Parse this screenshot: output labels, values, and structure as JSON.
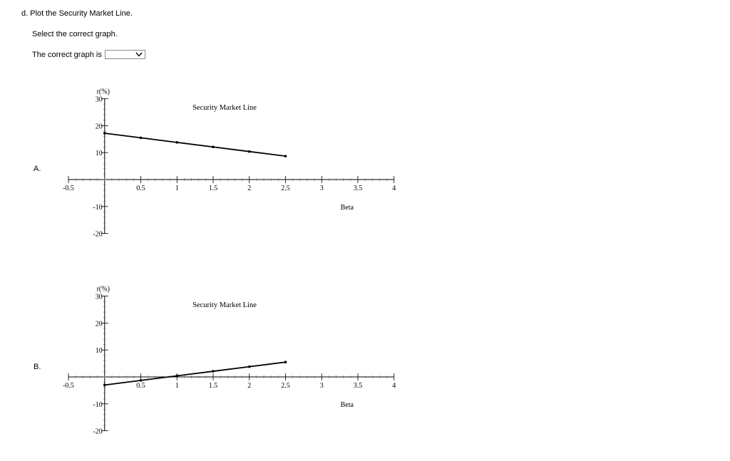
{
  "question": {
    "title": "d. Plot the Security Market Line.",
    "instruction": "Select the correct graph.",
    "answer_prompt": "The correct graph is",
    "dropdown_value": ""
  },
  "options": [
    {
      "label": "A."
    },
    {
      "label": "B."
    }
  ],
  "chart_data": [
    {
      "type": "line",
      "title": "Security Market Line",
      "xlabel": "Beta",
      "ylabel": "r(%)",
      "xlim": [
        -0.5,
        4
      ],
      "ylim": [
        -20,
        30
      ],
      "xticks": [
        -0.5,
        0.5,
        1,
        1.5,
        2,
        2.5,
        3,
        3.5,
        4
      ],
      "xtick_labels": [
        "-0.5",
        "0.5",
        "1",
        "1.5",
        "2",
        "2.5",
        "3",
        "3.5",
        "4"
      ],
      "yticks": [
        -20,
        -10,
        10,
        20,
        30
      ],
      "ytick_labels": [
        "-20",
        "-10",
        "10",
        "20",
        "30"
      ],
      "x": [
        0,
        0.5,
        1,
        1.5,
        2,
        2.5
      ],
      "values": [
        17.2,
        15.5,
        13.8,
        12.1,
        10.4,
        8.7
      ],
      "color": "#000000"
    },
    {
      "type": "line",
      "title": "Security Market Line",
      "xlabel": "Beta",
      "ylabel": "r(%)",
      "xlim": [
        -0.5,
        4
      ],
      "ylim": [
        -20,
        30
      ],
      "xticks": [
        -0.5,
        0.5,
        1,
        1.5,
        2,
        2.5,
        3,
        3.5,
        4
      ],
      "xtick_labels": [
        "-0.5",
        "0.5",
        "1",
        "1.5",
        "2",
        "2.5",
        "3",
        "3.5",
        "4"
      ],
      "yticks": [
        -20,
        -10,
        10,
        20,
        30
      ],
      "ytick_labels": [
        "-20",
        "-10",
        "10",
        "20",
        "30"
      ],
      "x": [
        0,
        0.5,
        1,
        1.5,
        2,
        2.5
      ],
      "values": [
        -3.0,
        -1.3,
        0.4,
        2.1,
        3.8,
        5.5
      ],
      "color": "#000000"
    }
  ]
}
